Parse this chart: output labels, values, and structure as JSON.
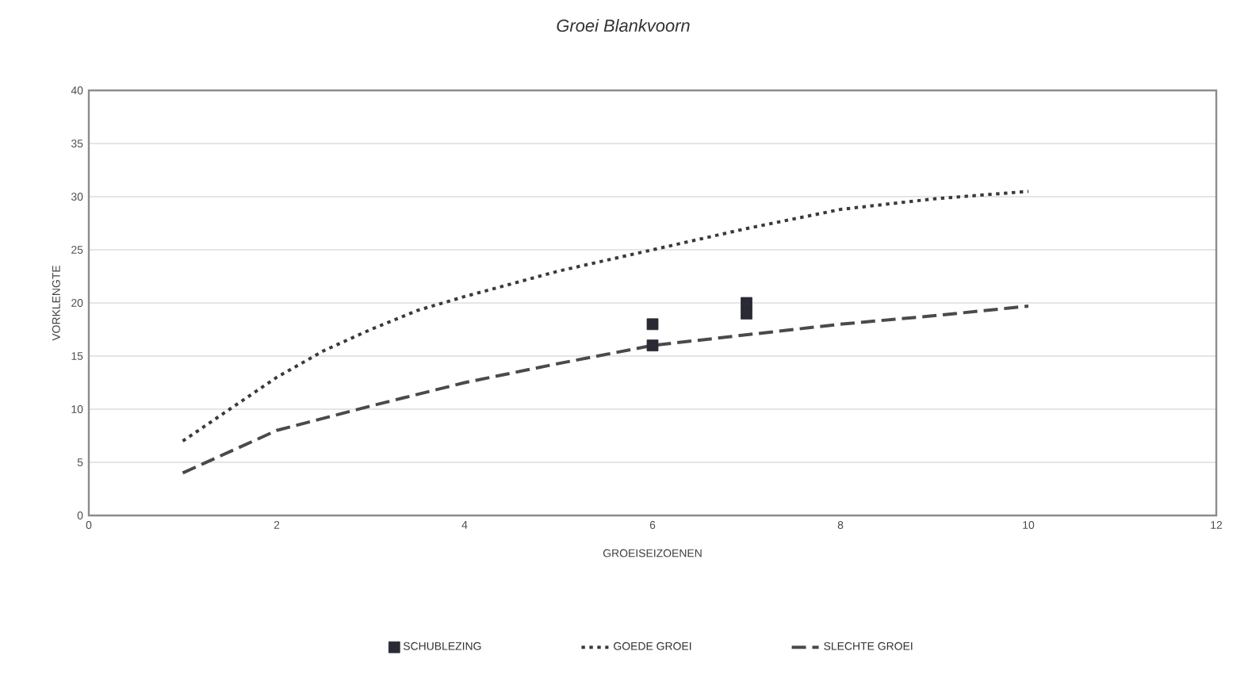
{
  "chart_data": {
    "type": "line",
    "title": "*Groei Blankvoorn*",
    "xlabel": "GROEISEIZOENEN",
    "ylabel": "VORKLENGTE",
    "series": [
      {
        "name": "SCHUBLEZING",
        "type": "scatter",
        "marker": "square",
        "color": "#2a2a35",
        "x": [
          6,
          6,
          7,
          7
        ],
        "values": [
          18,
          16,
          20,
          19
        ]
      },
      {
        "name": "GOEDE GROEI",
        "line_style": "dotted",
        "color": "#3a3a3a",
        "x": [
          1,
          1.5,
          2,
          2.5,
          3,
          3.5,
          4,
          5,
          6,
          7,
          8,
          9,
          10
        ],
        "values": [
          7,
          10,
          13,
          15.5,
          17.5,
          19.3,
          20.6,
          23,
          25,
          27,
          28.8,
          29.8,
          30.5
        ]
      },
      {
        "name": "SLECHTE GROEI",
        "line_style": "dashed",
        "color": "#4a4a4a",
        "x": [
          1,
          2,
          3,
          4,
          5,
          6,
          7,
          8,
          9,
          10
        ],
        "values": [
          4,
          8,
          10.3,
          12.5,
          14.3,
          16,
          17,
          18,
          18.8,
          19.7
        ]
      }
    ],
    "xlim": [
      0,
      12
    ],
    "ylim": [
      0,
      40
    ],
    "xticks": [
      0,
      2,
      4,
      6,
      8,
      10,
      12
    ],
    "yticks": [
      0,
      5,
      10,
      15,
      20,
      25,
      30,
      35,
      40
    ],
    "grid": "y",
    "legend": "bottom"
  }
}
